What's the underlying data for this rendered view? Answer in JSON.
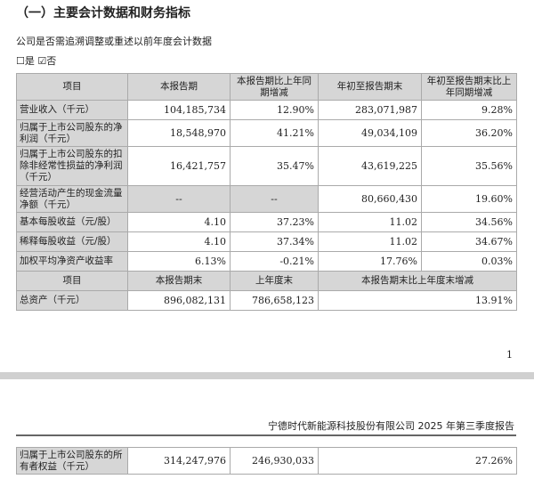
{
  "section_title": "（一）主要会计数据和财务指标",
  "question": "公司是否需追溯调整或重述以前年度会计数据",
  "options": "☐是 ☑否",
  "table1": {
    "headers": [
      "项目",
      "本报告期",
      "本报告期比上年同期增减",
      "年初至报告期末",
      "年初至报告期末比上年同期增减"
    ],
    "rows": [
      [
        "营业收入（千元）",
        "104,185,734",
        "12.90%",
        "283,071,987",
        "9.28%"
      ],
      [
        "归属于上市公司股东的净利润（千元）",
        "18,548,970",
        "41.21%",
        "49,034,109",
        "36.20%"
      ],
      [
        "归属于上市公司股东的扣除非经常性损益的净利润（千元）",
        "16,421,757",
        "35.47%",
        "43,619,225",
        "35.56%"
      ],
      [
        "经营活动产生的现金流量净额（千元）",
        "--",
        "--",
        "80,660,430",
        "19.60%"
      ],
      [
        "基本每股收益（元/股）",
        "4.10",
        "37.23%",
        "11.02",
        "34.56%"
      ],
      [
        "稀释每股收益（元/股）",
        "4.10",
        "37.34%",
        "11.02",
        "34.67%"
      ],
      [
        "加权平均净资产收益率",
        "6.13%",
        "-0.21%",
        "17.76%",
        "0.03%"
      ]
    ]
  },
  "table2": {
    "headers": [
      "项目",
      "本报告期末",
      "上年度末",
      "本报告期末比上年度末增减"
    ],
    "rows": [
      [
        "总资产（千元）",
        "896,082,131",
        "786,658,123",
        "13.91%"
      ]
    ]
  },
  "page_number": "1",
  "footer": "宁德时代新能源科技股份有限公司 2025 年第三季度报告",
  "table3": {
    "rows": [
      [
        "归属于上市公司股东的所有者权益（千元）",
        "314,247,976",
        "246,930,033",
        "27.26%"
      ]
    ]
  }
}
